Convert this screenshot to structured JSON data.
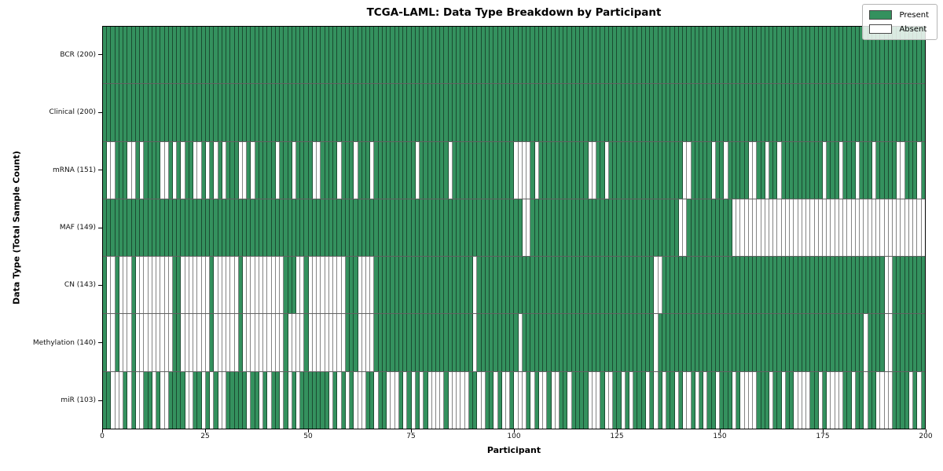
{
  "title": "TCGA-LAML: Data Type Breakdown by Participant",
  "x_axis_label": "Participant",
  "y_axis_label": "Data Type (Total Sample Count)",
  "legend": {
    "present_label": "Present",
    "absent_label": "Absent",
    "position": "upper right"
  },
  "colors": {
    "present": "#34915e",
    "absent": "#ffffff",
    "cell_border": "rgba(0,0,0,0.48)",
    "row_separator": "rgba(0,0,0,0.62)",
    "plot_border": "#000000"
  },
  "chart_data": {
    "type": "heatmap",
    "title": "TCGA-LAML: Data Type Breakdown by Participant",
    "xlabel": "Participant",
    "ylabel": "Data Type (Total Sample Count)",
    "x_range": [
      0,
      200
    ],
    "n_participants": 200,
    "x_ticks": [
      0,
      25,
      50,
      75,
      100,
      125,
      150,
      175,
      200
    ],
    "grid": false,
    "legend_position": "upper right",
    "value_encoding": {
      "present": 1,
      "absent": 0
    },
    "rows": [
      {
        "label": "BCR (200)",
        "data_type": "BCR",
        "present_count": 200,
        "absent_indices": []
      },
      {
        "label": "Clinical (200)",
        "data_type": "Clinical",
        "present_count": 200,
        "absent_indices": []
      },
      {
        "label": "mRNA (151)",
        "data_type": "mRNA",
        "present_count": 151,
        "absent_indices": [
          1,
          2,
          6,
          7,
          9,
          14,
          15,
          17,
          19,
          22,
          23,
          25,
          27,
          29,
          33,
          34,
          36,
          42,
          46,
          51,
          52,
          57,
          61,
          65,
          76,
          84,
          100,
          101,
          102,
          103,
          105,
          118,
          119,
          122,
          141,
          142,
          148,
          151,
          157,
          158,
          161,
          164,
          175,
          179,
          183,
          187,
          193,
          194,
          198
        ]
      },
      {
        "label": "MAF (149)",
        "data_type": "MAF",
        "present_count": 149,
        "absent_indices": [
          102,
          103,
          140,
          141,
          153,
          154,
          155,
          156,
          157,
          158,
          159,
          160,
          161,
          162,
          163,
          164,
          165,
          166,
          167,
          168,
          169,
          170,
          171,
          172,
          173,
          174,
          175,
          176,
          177,
          178,
          179,
          180,
          181,
          182,
          183,
          184,
          185,
          186,
          187,
          188,
          189,
          190,
          191,
          192,
          193,
          194,
          195,
          196,
          197,
          198,
          199
        ]
      },
      {
        "label": "CN (143)",
        "data_type": "CN",
        "present_count": 143,
        "absent_indices": [
          1,
          2,
          4,
          5,
          6,
          8,
          9,
          10,
          11,
          12,
          13,
          14,
          15,
          16,
          19,
          20,
          21,
          22,
          23,
          24,
          25,
          27,
          28,
          29,
          30,
          31,
          32,
          34,
          35,
          36,
          37,
          38,
          39,
          40,
          41,
          42,
          43,
          47,
          48,
          50,
          51,
          52,
          53,
          54,
          55,
          56,
          57,
          58,
          62,
          63,
          64,
          65,
          90,
          134,
          135,
          190,
          191
        ]
      },
      {
        "label": "Methylation (140)",
        "data_type": "Methylation",
        "present_count": 140,
        "absent_indices": [
          1,
          2,
          4,
          5,
          6,
          8,
          9,
          10,
          11,
          12,
          13,
          14,
          15,
          16,
          19,
          20,
          21,
          22,
          23,
          24,
          25,
          27,
          28,
          29,
          30,
          31,
          32,
          34,
          35,
          36,
          37,
          38,
          39,
          40,
          41,
          42,
          43,
          45,
          46,
          47,
          48,
          50,
          51,
          52,
          53,
          54,
          55,
          56,
          57,
          58,
          62,
          63,
          64,
          65,
          90,
          101,
          134,
          185,
          190,
          191
        ]
      },
      {
        "label": "miR (103)",
        "data_type": "miR",
        "present_count": 103,
        "absent_indices": [
          2,
          3,
          4,
          6,
          8,
          9,
          12,
          14,
          15,
          20,
          21,
          24,
          26,
          28,
          29,
          35,
          38,
          40,
          43,
          45,
          47,
          55,
          57,
          59,
          61,
          62,
          63,
          66,
          69,
          70,
          71,
          73,
          75,
          77,
          79,
          80,
          81,
          82,
          84,
          85,
          86,
          87,
          88,
          91,
          92,
          95,
          97,
          98,
          100,
          101,
          102,
          104,
          106,
          107,
          109,
          110,
          113,
          118,
          119,
          120,
          122,
          123,
          126,
          128,
          132,
          134,
          136,
          139,
          141,
          142,
          144,
          146,
          149,
          153,
          155,
          156,
          157,
          158,
          162,
          165,
          168,
          169,
          170,
          171,
          174,
          176,
          177,
          178,
          179,
          182,
          185,
          188,
          189,
          190,
          191,
          196,
          198
        ]
      }
    ]
  }
}
